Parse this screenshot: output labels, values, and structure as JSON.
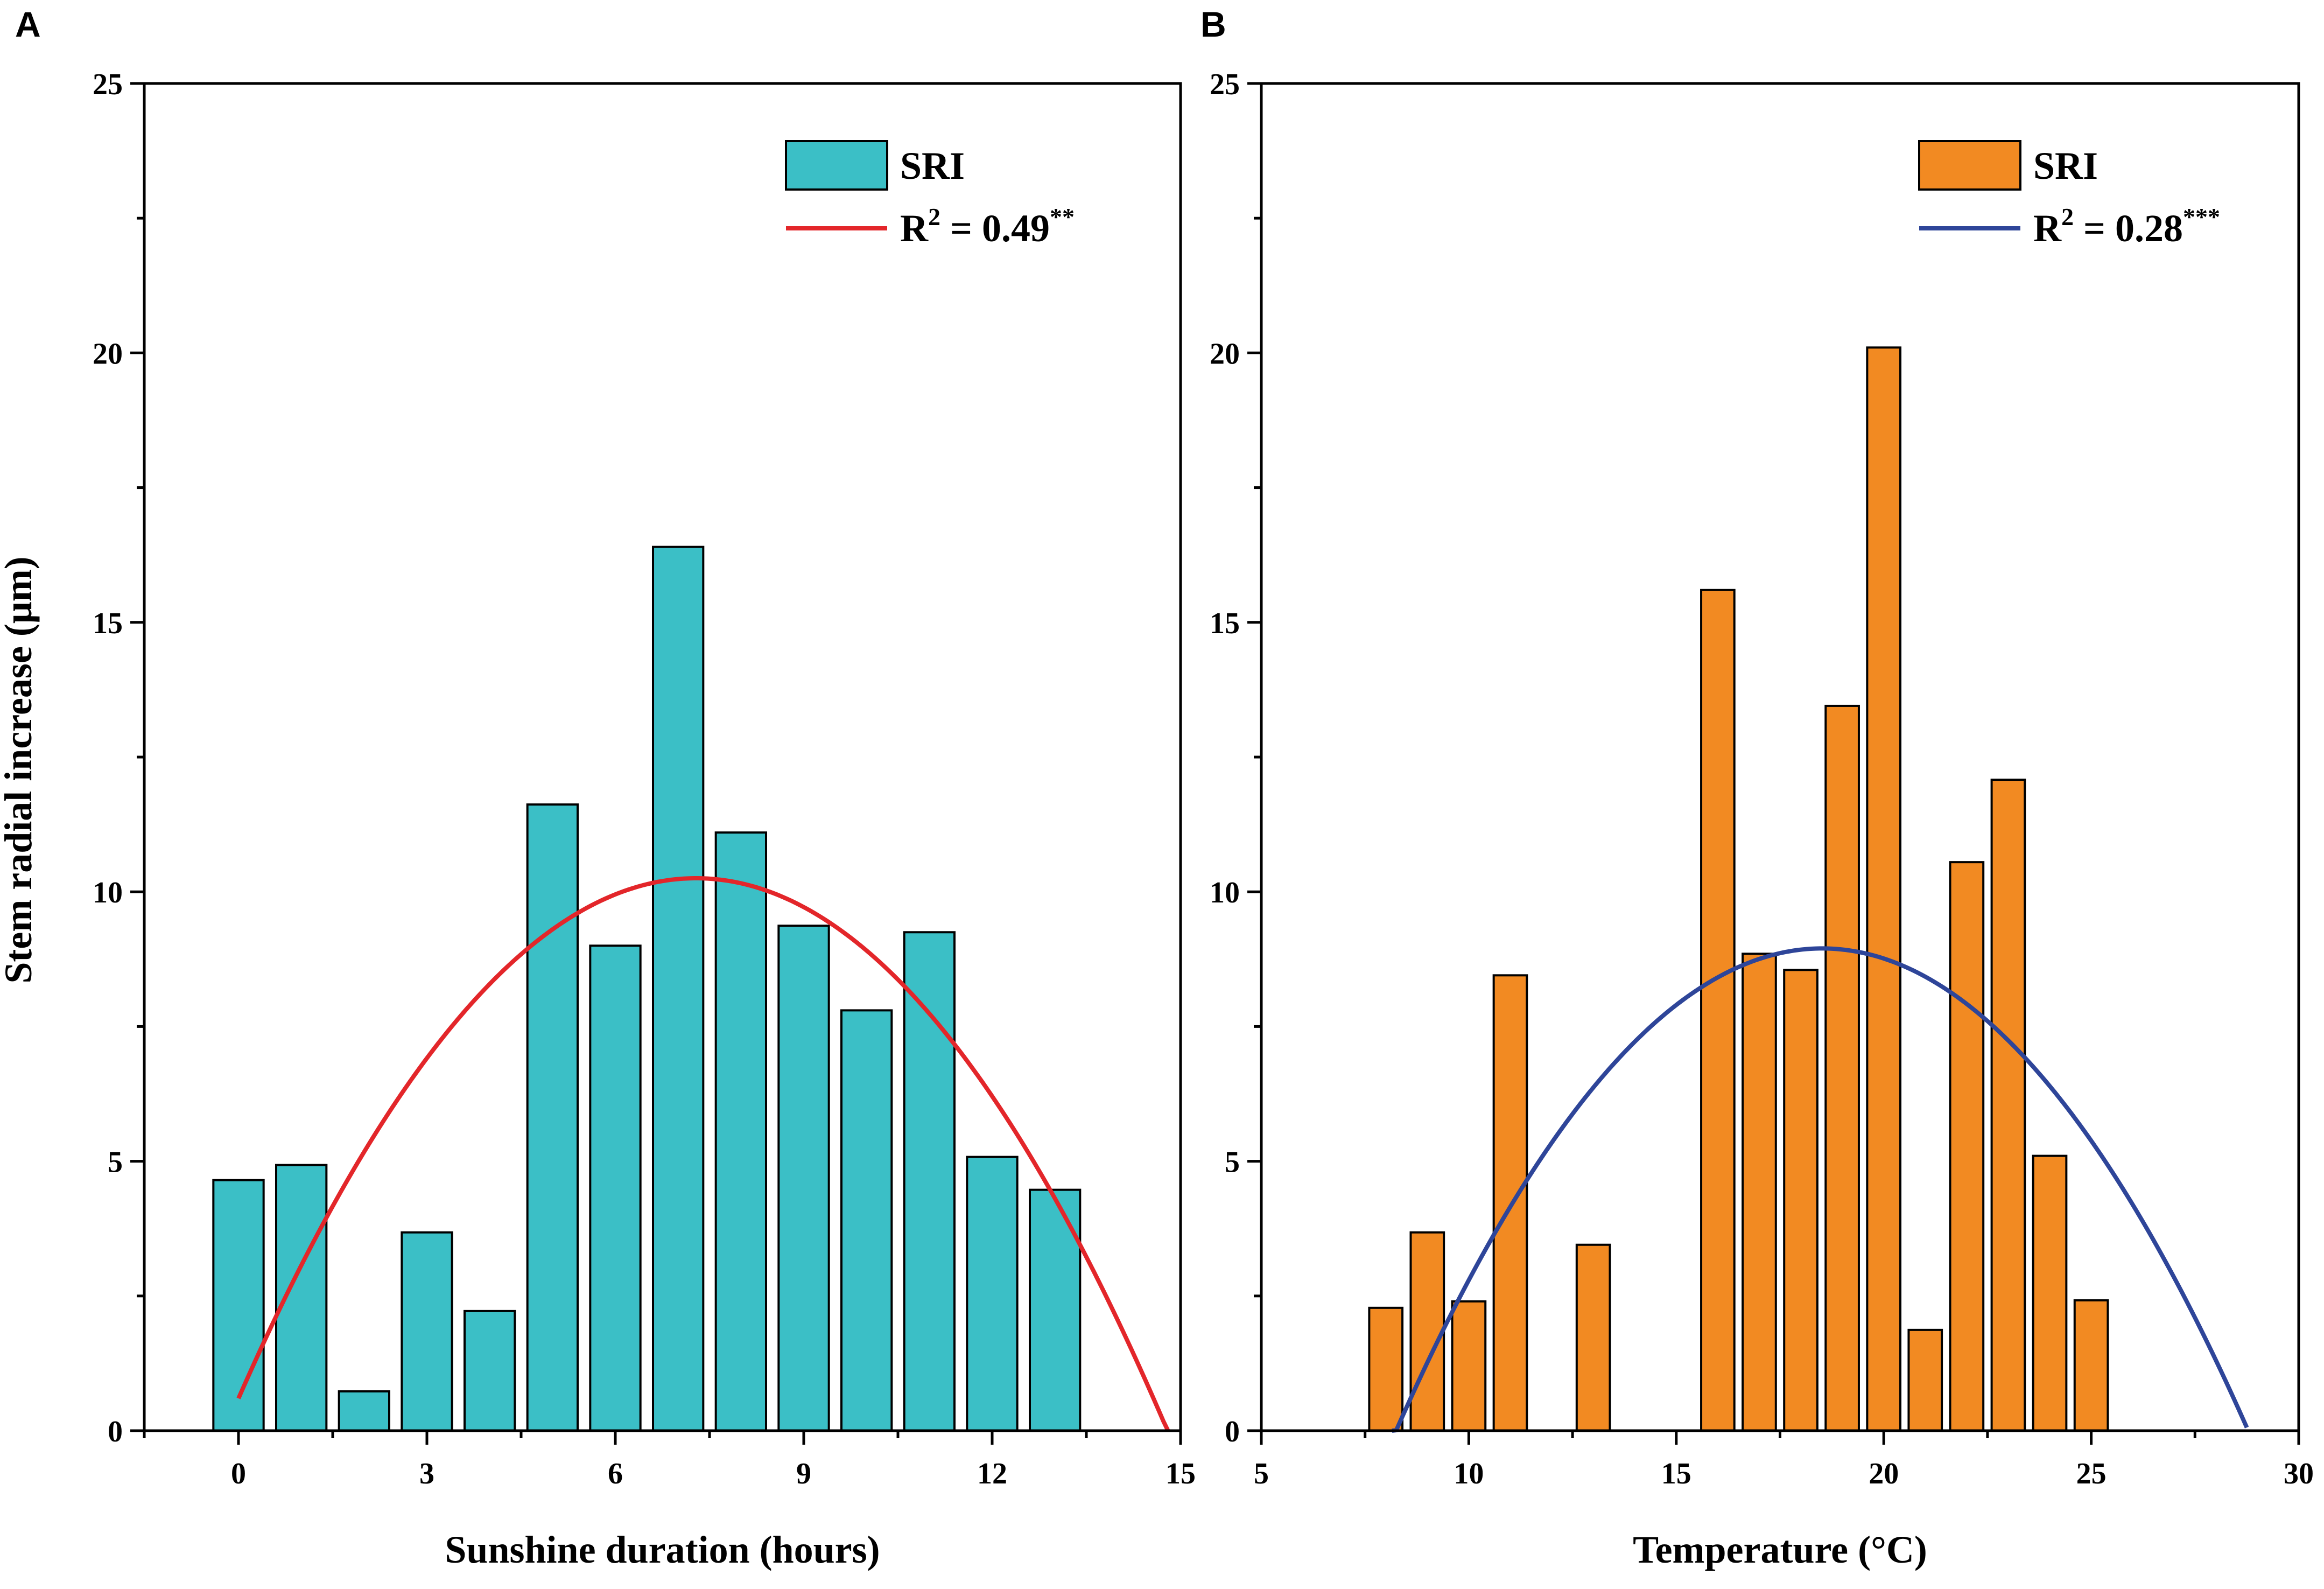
{
  "colors": {
    "bar_A": "#3BBFC6",
    "bar_B": "#F28A22",
    "curve_A": "#E3262A",
    "curve_B": "#2E4599",
    "axis": "#000000"
  },
  "ylabel": "Stem radial increase (μm)",
  "chart_data": [
    {
      "type": "bar",
      "panel": "A",
      "title": "",
      "xlabel": "Sunshine duration (hours)",
      "ylabel": "Stem radial increase (μm)",
      "xlim": [
        -1.5,
        15
      ],
      "ylim": [
        0,
        25
      ],
      "xticks": [
        0,
        3,
        6,
        9,
        12,
        15
      ],
      "xtick_labels": [
        "0",
        "3",
        "6",
        "9",
        "12",
        "15"
      ],
      "yticks": [
        0,
        5,
        10,
        15,
        20,
        25
      ],
      "ytick_labels": [
        "0",
        "5",
        "10",
        "15",
        "20",
        "25"
      ],
      "bar_width": 0.8,
      "x": [
        0,
        1,
        2,
        3,
        4,
        5,
        6,
        7,
        8,
        9,
        10,
        11,
        12,
        13
      ],
      "values": [
        4.65,
        4.93,
        0.73,
        3.68,
        2.22,
        11.62,
        9.0,
        16.4,
        11.1,
        9.37,
        7.8,
        9.25,
        5.08,
        4.47
      ],
      "fit": {
        "type": "quadratic",
        "coefficients": [
          -0.1819,
          2.65,
          0.6
        ],
        "x_range": [
          0,
          14.8
        ]
      },
      "legend": {
        "bar_label": "SRI",
        "fit_label_prefix": "R",
        "fit_label_sup": "2",
        "fit_label_value": " = 0.49",
        "fit_label_stars": "**",
        "position": "top-right"
      }
    },
    {
      "type": "bar",
      "panel": "B",
      "title": "",
      "xlabel": "Temperature (°C)",
      "ylabel": "",
      "xlim": [
        5,
        30
      ],
      "ylim": [
        0,
        25
      ],
      "xticks": [
        5,
        10,
        15,
        20,
        25,
        30
      ],
      "xtick_labels": [
        "5",
        "10",
        "15",
        "20",
        "25",
        "30"
      ],
      "yticks": [
        0,
        5,
        10,
        15,
        20,
        25
      ],
      "ytick_labels": [
        "0",
        "5",
        "10",
        "15",
        "20",
        "25"
      ],
      "bar_width": 0.8,
      "x": [
        8,
        9,
        10,
        11,
        13,
        16,
        17,
        18,
        19,
        20,
        21,
        22,
        23,
        24,
        25
      ],
      "values": [
        2.28,
        3.68,
        2.4,
        8.45,
        3.45,
        15.6,
        8.85,
        8.55,
        13.45,
        20.1,
        1.87,
        10.55,
        12.08,
        5.1,
        2.42
      ],
      "fit": {
        "type": "quadratic",
        "coefficients": [
          -0.08488,
          3.1432,
          -20.15
        ],
        "x_range": [
          8.15,
          28.75
        ]
      },
      "legend": {
        "bar_label": "SRI",
        "fit_label_prefix": "R",
        "fit_label_sup": "2",
        "fit_label_value": " = 0.28",
        "fit_label_stars": "***",
        "position": "top-right"
      }
    }
  ]
}
